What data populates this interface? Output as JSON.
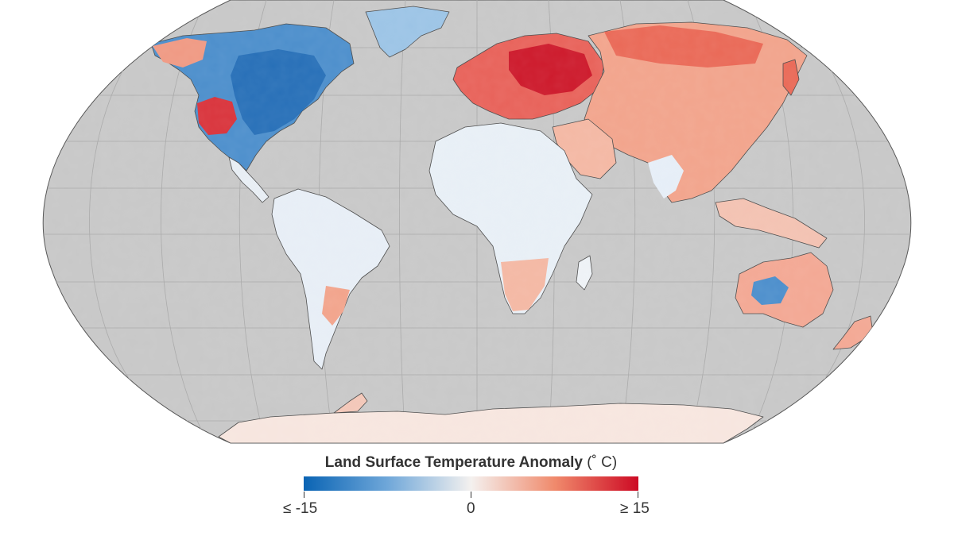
{
  "legend": {
    "title": "Land Surface Temperature Anomaly",
    "unit": "(˚ C)",
    "min_label": "≤ -15",
    "mid_label": "0",
    "max_label": "≥ 15",
    "min_value": -15,
    "mid_value": 0,
    "max_value": 15,
    "colors": {
      "cold": "#0a64b4",
      "cool": "#6fa7d9",
      "neutral": "#f4f1ef",
      "warm": "#f08a6c",
      "hot": "#cd0a24"
    }
  },
  "map": {
    "ocean_color": "#c8c8c8",
    "projection": "Robinson"
  }
}
